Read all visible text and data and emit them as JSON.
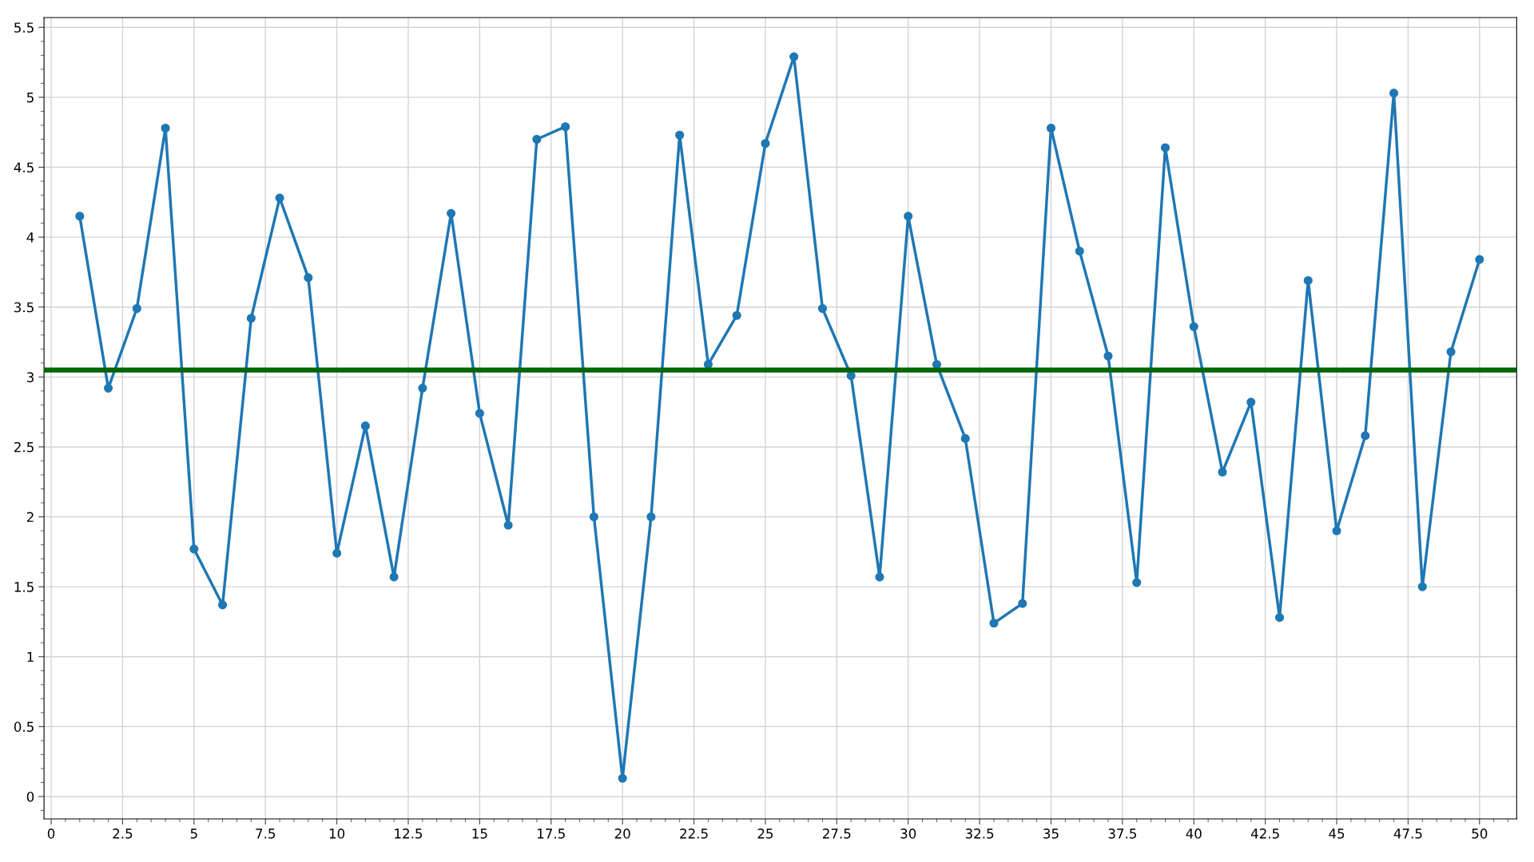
{
  "chart_data": {
    "type": "line",
    "x": [
      1,
      2,
      3,
      4,
      5,
      6,
      7,
      8,
      9,
      10,
      11,
      12,
      13,
      14,
      15,
      16,
      17,
      18,
      19,
      20,
      21,
      22,
      23,
      24,
      25,
      26,
      27,
      28,
      29,
      30,
      31,
      32,
      33,
      34,
      35,
      36,
      37,
      38,
      39,
      40,
      41,
      42,
      43,
      44,
      45,
      46,
      47,
      48,
      49,
      50
    ],
    "series": [
      {
        "color": "#1f77b4",
        "values": [
          4.15,
          2.92,
          3.49,
          4.78,
          1.77,
          1.37,
          3.42,
          4.28,
          3.71,
          1.74,
          2.65,
          1.57,
          2.92,
          4.17,
          2.74,
          1.94,
          4.7,
          4.79,
          2.0,
          0.13,
          2.0,
          4.73,
          3.09,
          3.44,
          4.67,
          5.29,
          3.49,
          3.01,
          1.57,
          4.15,
          3.09,
          2.56,
          1.24,
          1.38,
          4.78,
          3.9,
          3.15,
          1.53,
          4.64,
          3.36,
          2.32,
          2.82,
          1.28,
          3.69,
          1.9,
          2.58,
          5.03,
          1.5,
          3.18,
          3.84
        ]
      }
    ],
    "xlim": [
      -0.25,
      51.3
    ],
    "ylim": [
      -0.16,
      5.57
    ],
    "xticks": [
      0,
      2.5,
      5,
      7.5,
      10,
      12.5,
      15,
      17.5,
      20,
      22.5,
      25,
      27.5,
      30,
      32.5,
      35,
      37.5,
      40,
      42.5,
      45,
      47.5,
      50
    ],
    "yticks": [
      0,
      0.5,
      1,
      1.5,
      2,
      2.5,
      3,
      3.5,
      4,
      4.5,
      5,
      5.5
    ],
    "ref_lines": [
      {
        "axis": "y",
        "value": 3.05,
        "color": "#006400",
        "line_style": "solid"
      }
    ],
    "grid": true,
    "legend": false,
    "marker": "circle",
    "line_style": "solid"
  }
}
